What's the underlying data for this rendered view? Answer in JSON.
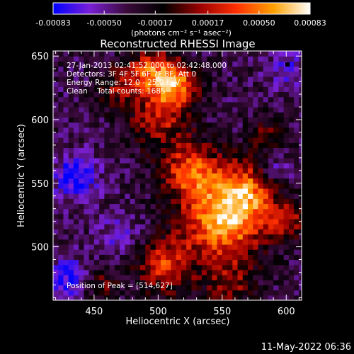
{
  "chart_data": {
    "type": "heatmap",
    "title": "Reconstructed RHESSI Image",
    "xlabel": "Heliocentric X (arcsec)",
    "ylabel": "Heliocentric Y (arcsec)",
    "xlim": [
      418,
      612
    ],
    "ylim": [
      458,
      654
    ],
    "x_ticks": [
      "450",
      "500",
      "550",
      "600"
    ],
    "y_ticks": [
      "500",
      "550",
      "600",
      "650"
    ],
    "x_tick_values": [
      450,
      500,
      550,
      600
    ],
    "y_tick_values": [
      500,
      550,
      600,
      650
    ],
    "colorbar": {
      "range": [
        -0.00083,
        0.00083
      ],
      "tick_labels": [
        "-0.00083",
        "-0.00050",
        "-0.00017",
        "0.00017",
        "0.00050",
        "0.00083"
      ],
      "tick_values": [
        -0.00083,
        -0.0005,
        -0.00017,
        0.00017,
        0.0005,
        0.00083
      ],
      "unit_label": "(photons cm⁻² s⁻¹ asec⁻²)",
      "colors": [
        "#0000ff",
        "#7a1fd6",
        "#3a0a3a",
        "#000000",
        "#9a0000",
        "#ff3000",
        "#ffa000",
        "#ffffff"
      ]
    },
    "annotations": {
      "time_range": "27-Jan-2013 02:41:52.000 to 02:42:48.000",
      "detectors": "Detectors: 3F 4F 5F 6F 7F 8F, Att 0",
      "energy_range": "Energy Range: 12.0 - 25.0 keV",
      "clean_line": "Clean    Total counts: 1685",
      "peak_position": "Position of Peak = [514,627]"
    },
    "blobs": [
      {
        "x": 550,
        "y": 520,
        "value": 0.00083,
        "sigma": 22
      },
      {
        "x": 570,
        "y": 545,
        "value": 0.00055,
        "sigma": 18
      },
      {
        "x": 525,
        "y": 560,
        "value": 0.0006,
        "sigma": 16
      },
      {
        "x": 500,
        "y": 600,
        "value": 0.0004,
        "sigma": 16
      },
      {
        "x": 513,
        "y": 628,
        "value": 0.00075,
        "sigma": 13
      },
      {
        "x": 493,
        "y": 640,
        "value": 0.0005,
        "sigma": 12
      },
      {
        "x": 470,
        "y": 625,
        "value": 0.0003,
        "sigma": 12
      },
      {
        "x": 505,
        "y": 485,
        "value": 0.00055,
        "sigma": 15
      },
      {
        "x": 555,
        "y": 470,
        "value": 0.0003,
        "sigma": 14
      },
      {
        "x": 455,
        "y": 470,
        "value": 0.00025,
        "sigma": 10
      },
      {
        "x": 600,
        "y": 520,
        "value": 0.0004,
        "sigma": 10
      },
      {
        "x": 585,
        "y": 590,
        "value": 0.0002,
        "sigma": 10
      },
      {
        "x": 435,
        "y": 555,
        "value": -0.0006,
        "sigma": 12
      },
      {
        "x": 430,
        "y": 475,
        "value": -0.0005,
        "sigma": 12
      },
      {
        "x": 470,
        "y": 510,
        "value": -0.0004,
        "sigma": 10
      },
      {
        "x": 600,
        "y": 640,
        "value": -0.0004,
        "sigma": 10
      },
      {
        "x": 590,
        "y": 560,
        "value": -0.00045,
        "sigma": 10
      }
    ],
    "grid": false,
    "legend": "none"
  },
  "footer": {
    "date_stamp": "11-May-2022 06:36"
  }
}
